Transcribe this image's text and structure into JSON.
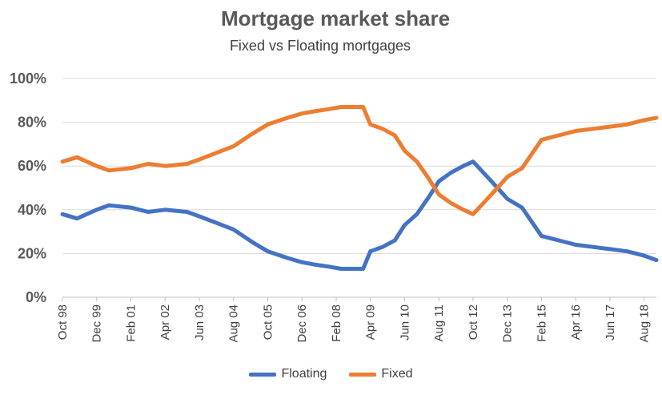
{
  "chart_data": {
    "type": "line",
    "title": "Mortgage market share",
    "subtitle": "Fixed vs Floating mortgages",
    "ylim": [
      0,
      100
    ],
    "yticks": [
      "0%",
      "20%",
      "40%",
      "60%",
      "80%",
      "100%"
    ],
    "xticks": [
      "Oct 98",
      "Dec 99",
      "Feb 01",
      "Apr 02",
      "Jun 03",
      "Aug 04",
      "Oct 05",
      "Dec 06",
      "Feb 08",
      "Apr 09",
      "Jun 10",
      "Aug 11",
      "Oct 12",
      "Dec 13",
      "Feb 15",
      "Apr 16",
      "Jun 17",
      "Aug 18"
    ],
    "grid": true,
    "legend": "bottom",
    "x": [
      "1998-10",
      "1999-04",
      "1999-12",
      "2000-05",
      "2001-02",
      "2001-09",
      "2002-04",
      "2003-01",
      "2003-06",
      "2004-01",
      "2004-08",
      "2005-04",
      "2005-10",
      "2006-06",
      "2006-12",
      "2007-05",
      "2007-11",
      "2008-04",
      "2008-09",
      "2009-01",
      "2009-04",
      "2009-09",
      "2010-02",
      "2010-06",
      "2010-11",
      "2011-04",
      "2011-08",
      "2012-01",
      "2012-06",
      "2012-10",
      "2013-03",
      "2013-08",
      "2013-12",
      "2014-06",
      "2015-02",
      "2015-09",
      "2016-04",
      "2016-11",
      "2017-06",
      "2018-01",
      "2018-08",
      "2019-01"
    ],
    "series": [
      {
        "name": "Floating",
        "color": "#4472C4",
        "values": [
          38,
          36,
          40,
          42,
          41,
          39,
          40,
          39,
          37,
          34,
          31,
          25,
          21,
          18,
          16,
          15,
          14,
          13,
          13,
          13,
          21,
          23,
          26,
          33,
          38,
          46,
          53,
          57,
          60,
          62,
          56,
          50,
          45,
          41,
          28,
          26,
          24,
          23,
          22,
          21,
          19,
          17
        ]
      },
      {
        "name": "Fixed",
        "color": "#ED7D31",
        "values": [
          62,
          64,
          60,
          58,
          59,
          61,
          60,
          61,
          63,
          66,
          69,
          75,
          79,
          82,
          84,
          85,
          86,
          87,
          87,
          87,
          79,
          77,
          74,
          67,
          62,
          54,
          47,
          43,
          40,
          38,
          44,
          50,
          55,
          59,
          72,
          74,
          76,
          77,
          78,
          79,
          81,
          82
        ]
      }
    ]
  }
}
